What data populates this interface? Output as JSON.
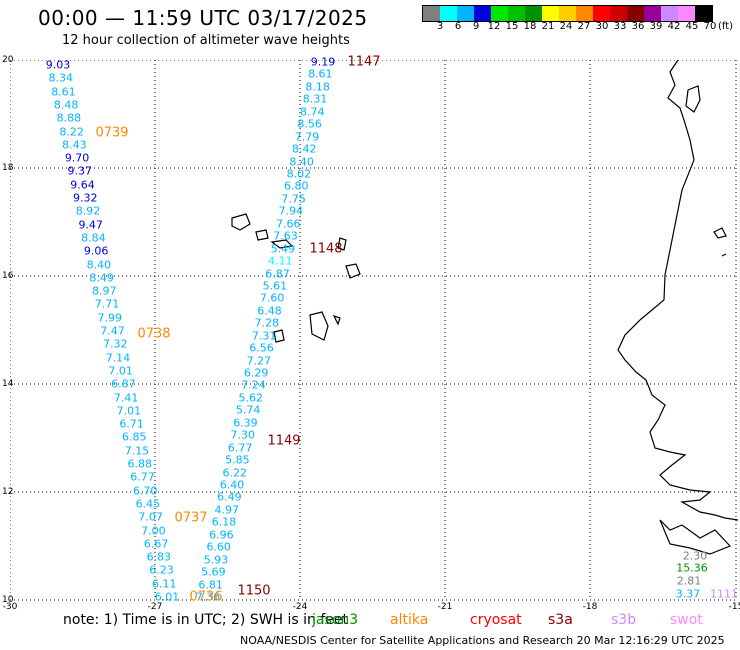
{
  "header": {
    "title": "00:00 — 11:59 UTC 03/17/2025",
    "subtitle": "12 hour collection of altimeter wave heights"
  },
  "legend": {
    "colors": [
      "#7f7f7f",
      "#00ffff",
      "#00b4ff",
      "#0000e0",
      "#00e800",
      "#00c000",
      "#009000",
      "#ffff00",
      "#ffcc00",
      "#ff8800",
      "#ff0000",
      "#cc0000",
      "#880000",
      "#990099",
      "#cc88ff",
      "#ff88ff",
      "#000000"
    ],
    "labels": [
      "3",
      "6",
      "9",
      "12",
      "15",
      "18",
      "21",
      "24",
      "27",
      "30",
      "33",
      "36",
      "39",
      "42",
      "45",
      "70"
    ],
    "unit": "(ft)"
  },
  "axes": {
    "lat_ticks": [
      "20",
      "18",
      "16",
      "14",
      "12",
      "10"
    ],
    "lon_ticks": [
      "-30",
      "-27",
      "-24",
      "-21",
      "-18",
      "-15"
    ]
  },
  "passes": {
    "west_values": [
      "9.03",
      "8.34",
      "8.61",
      "8.48",
      "8.88",
      "8.22",
      "8.43",
      "9.70",
      "9.37",
      "9.64",
      "9.32",
      "8.92",
      "9.47",
      "8.84",
      "9.06",
      "8.40",
      "8.49",
      "8.97",
      "7.71",
      "7.99",
      "7.47",
      "7.32",
      "7.14",
      "7.01",
      "6.87",
      "7.41",
      "7.01",
      "6.71",
      "6.85",
      "7.15",
      "6.88",
      "6.77",
      "6.70",
      "6.45",
      "7.07",
      "7.00",
      "6.67",
      "6.83",
      "6.23",
      "6.11",
      "6.01"
    ],
    "east_values": [
      "9.19",
      "8.61",
      "8.18",
      "8.31",
      "8.74",
      "8.56",
      "7.79",
      "8.42",
      "8.40",
      "8.02",
      "6.80",
      "7.75",
      "7.94",
      "7.66",
      "7.63",
      "5.49",
      "4.11",
      "6.87",
      "5.61",
      "7.60",
      "6.48",
      "7.28",
      "7.31",
      "6.56",
      "7.27",
      "6.29",
      "7.24",
      "5.62",
      "5.74",
      "6.39",
      "7.30",
      "6.77",
      "5.85",
      "6.22",
      "6.40",
      "6.49",
      "4.97",
      "6.18",
      "6.96",
      "6.60",
      "5.93",
      "5.69",
      "6.81",
      "7.36"
    ],
    "times": [
      {
        "label": "1147",
        "color": "#880000"
      },
      {
        "label": "0739",
        "color": "#ff8800"
      },
      {
        "label": "1148",
        "color": "#880000"
      },
      {
        "label": "0738",
        "color": "#ff8800"
      },
      {
        "label": "1149",
        "color": "#880000"
      },
      {
        "label": "0737",
        "color": "#ff8800"
      },
      {
        "label": "1150",
        "color": "#880000"
      },
      {
        "label": "0736",
        "color": "#ff8800"
      }
    ],
    "corner_values": [
      {
        "label": "2.30",
        "color": "#7f7f7f"
      },
      {
        "label": "15.36",
        "color": "#009000"
      },
      {
        "label": "2.81",
        "color": "#7f7f7f"
      },
      {
        "label": "3.37",
        "color": "#00b4ff"
      },
      {
        "label": "1111",
        "color": "#cc88ff"
      }
    ]
  },
  "footer": {
    "note": "note: 1) Time is in UTC; 2) SWH is in feet",
    "satellites": [
      {
        "label": "jason3",
        "color": "#009000"
      },
      {
        "label": "altika",
        "color": "#ff8800"
      },
      {
        "label": "cryosat",
        "color": "#ff0000"
      },
      {
        "label": "s3a",
        "color": "#880000"
      },
      {
        "label": "s3b",
        "color": "#cc88ff"
      },
      {
        "label": "swot",
        "color": "#ff88ff"
      }
    ],
    "credit": "NOAA/NESDIS Center for Satellite Applications and Research   20 Mar 12:16:29 UTC 2025"
  },
  "value_colors": {
    "high": "#0000e0",
    "mid": "#00b4ff",
    "low": "#00ffff"
  }
}
